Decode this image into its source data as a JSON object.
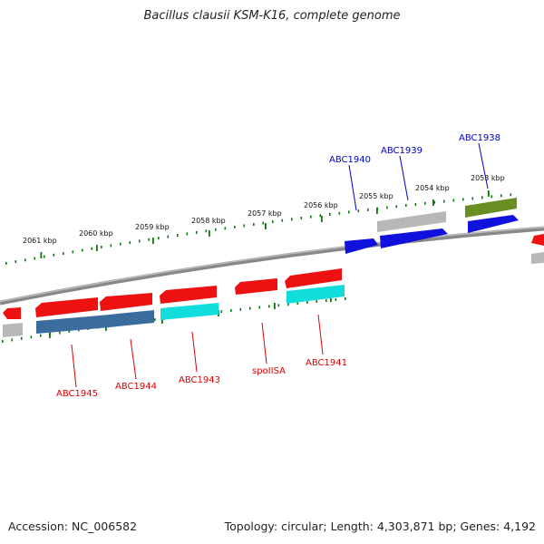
{
  "title": "Bacillus clausii KSM-K16, complete genome",
  "accession_text": "Accession: NC_006582",
  "summary_text": "Topology: circular; Length: 4,303,871 bp; Genes: 4,192",
  "ruler": {
    "unit": "kbp",
    "tick_labels": [
      "2061 kbp",
      "2060 kbp",
      "2059 kbp",
      "2058 kbp",
      "2057 kbp",
      "2056 kbp",
      "2055 kbp",
      "2054 kbp",
      "2053 kbp"
    ]
  },
  "colors": {
    "forward_label": "#0000cc",
    "reverse_label": "#dd0000",
    "ruler_dots": "#117711",
    "backbone": "#888888",
    "red_gene": "#ee1111",
    "blue_gene": "#1111dd",
    "steel_gene": "#3a6d9e",
    "cyan_gene": "#11dddd",
    "grey_gene": "#b8b8b8",
    "olive_gene": "#6b8e23"
  },
  "gene_labels_forward": [
    "ABC1940",
    "ABC1939",
    "ABC1938"
  ],
  "gene_labels_reverse": [
    "ABC1945",
    "ABC1944",
    "ABC1943",
    "spoIISA",
    "ABC1941"
  ]
}
